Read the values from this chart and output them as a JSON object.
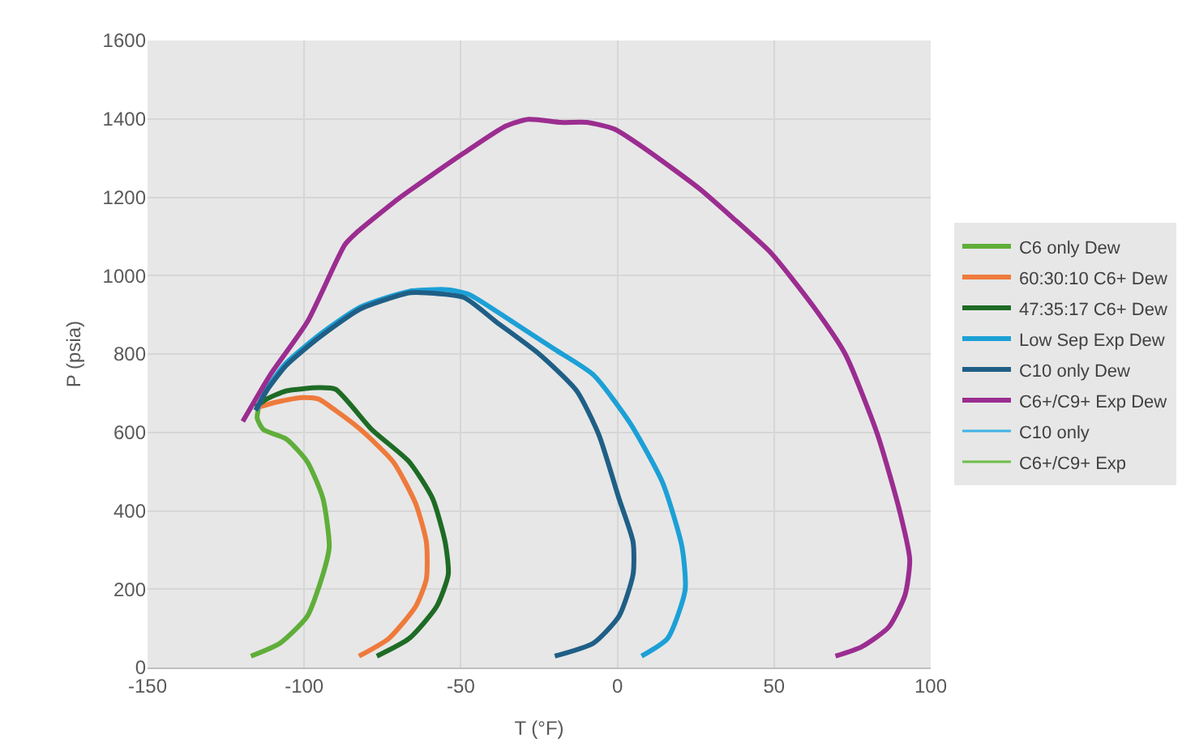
{
  "chart_data": {
    "type": "line",
    "xlabel": "T (°F)",
    "ylabel": "P (psia)",
    "xlim": [
      -150,
      100
    ],
    "xticks": [
      -150,
      -100,
      -50,
      0,
      50,
      100
    ],
    "ylim": [
      0,
      1600
    ],
    "yticks": [
      0,
      200,
      400,
      600,
      800,
      1000,
      1200,
      1400,
      1600
    ],
    "grid": true,
    "legend": "right",
    "marker": "none",
    "line_style": "solid",
    "series": [
      {
        "name": "C6 only Dew",
        "color": "#5fae3a",
        "x": [
          -117,
          -107.7,
          -99,
          -94,
          -92,
          -94,
          -99,
          -105.7,
          -113,
          -115,
          -114.4
        ],
        "values": [
          29,
          62,
          131,
          238,
          308,
          431,
          525,
          583,
          607,
          636,
          669
        ]
      },
      {
        "name": "60:30:10 C6+ Dew",
        "color": "#ee7a3c",
        "x": [
          -82.5,
          -73,
          -64.4,
          -61,
          -61,
          -64.4,
          -71.6,
          -82,
          -90,
          -95.4,
          -100.5,
          -109,
          -114.4
        ],
        "values": [
          29,
          74,
          156,
          226,
          320,
          418,
          525,
          607,
          656,
          685,
          689,
          677,
          665
        ]
      },
      {
        "name": "47:35:17 C6+ Dew",
        "color": "#1e6b25",
        "x": [
          -76.8,
          -66.5,
          -57.7,
          -54,
          -55,
          -59,
          -66.5,
          -78.4,
          -90,
          -95.4,
          -105.7,
          -112,
          -115.5
        ],
        "values": [
          29,
          74,
          156,
          238,
          320,
          431,
          525,
          607,
          710,
          714,
          706,
          685,
          665
        ]
      },
      {
        "name": "Low Sep Exp Dew",
        "color": "#1ca0d6",
        "x": [
          7.7,
          16,
          21.6,
          20.6,
          14.4,
          4,
          -7.7,
          -20,
          -33.5,
          -47.4,
          -54,
          -66.5,
          -82,
          -95,
          -106,
          -112,
          -115
        ],
        "values": [
          29,
          74,
          197,
          308,
          472,
          624,
          747,
          812,
          882,
          952,
          964,
          960,
          920,
          850,
          775,
          710,
          660
        ]
      },
      {
        "name": "C10 only Dew",
        "color": "#1f5f86",
        "x": [
          -20,
          -7.7,
          0.5,
          5,
          5,
          0.5,
          -6,
          -13,
          -25,
          -38.7,
          -49,
          -61,
          -66.5,
          -82,
          -95.4,
          -105.7,
          -112,
          -115.5
        ],
        "values": [
          29,
          62,
          131,
          238,
          320,
          431,
          595,
          706,
          800,
          882,
          944,
          956,
          956,
          915,
          841,
          771,
          706,
          656
        ]
      },
      {
        "name": "C6+/C9+ Exp Dew",
        "color": "#9b2d90",
        "x": [
          -119.6,
          -110.8,
          -99,
          -87,
          -83.5,
          -69.6,
          -49,
          -35.6,
          -28.4,
          -18,
          -9.8,
          -1,
          9.3,
          26,
          36.6,
          49,
          62.4,
          72.7,
          83,
          90,
          93.3,
          91.8,
          86.6,
          78,
          69.6
        ],
        "values": [
          628,
          747,
          882,
          1079,
          1108,
          1198,
          1313,
          1382,
          1399,
          1391,
          1391,
          1374,
          1321,
          1223,
          1149,
          1058,
          923,
          800,
          595,
          402,
          275,
          185,
          103,
          53,
          29
        ]
      },
      {
        "name": "C10 only",
        "color": "#3fb4e6",
        "x": [
          null
        ],
        "values": [
          null
        ]
      },
      {
        "name": "C6+/C9+ Exp",
        "color": "#6dbf4b",
        "x": [
          null
        ],
        "values": [
          null
        ]
      }
    ]
  }
}
